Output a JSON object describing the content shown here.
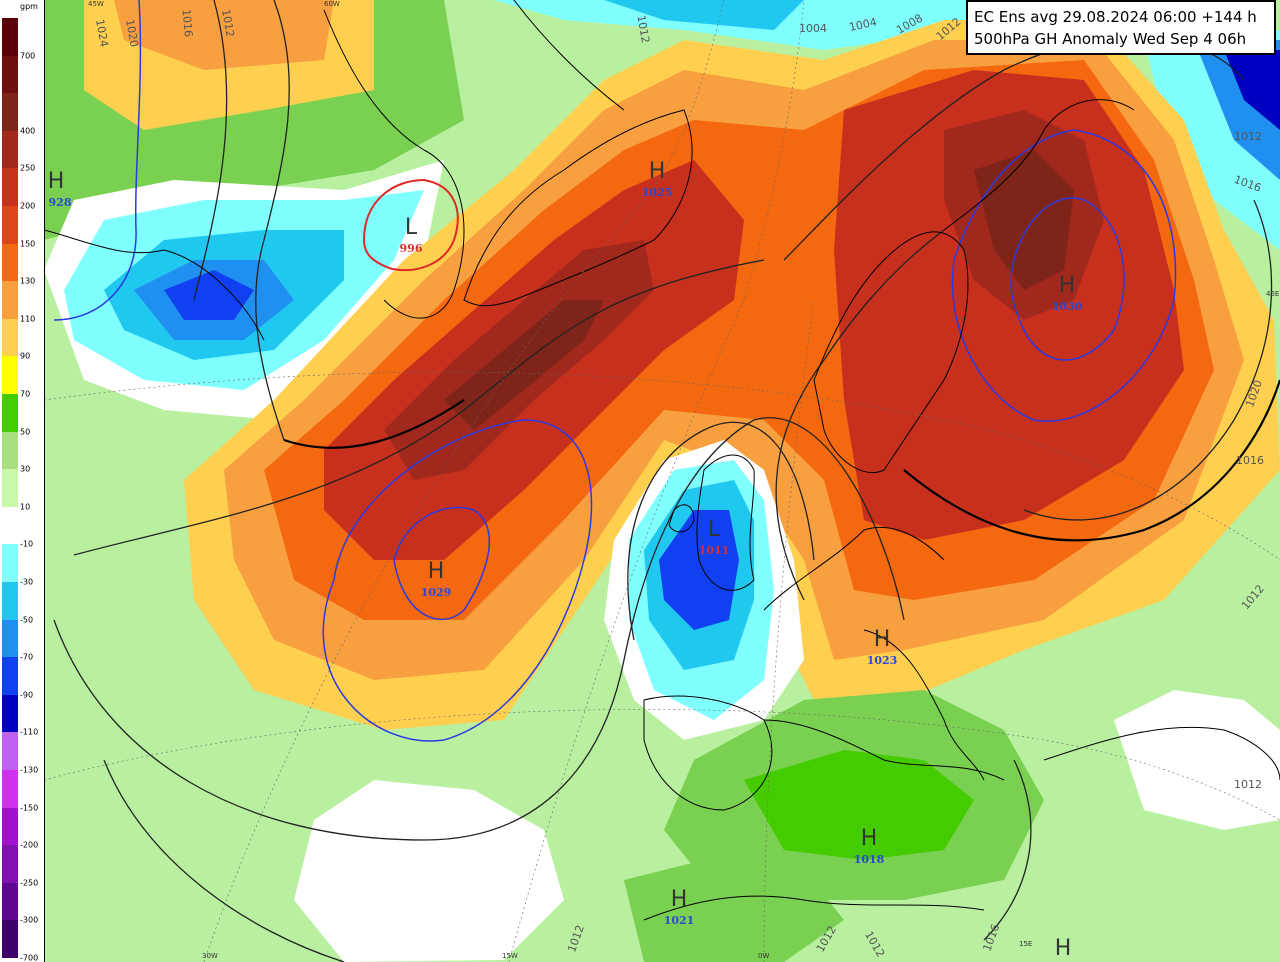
{
  "title": {
    "line1": "EC Ens avg 29.08.2024 06:00 +144 h",
    "line2": "500hPa GH Anomaly Wed Sep 4 06h"
  },
  "legend": {
    "unit": "gpm",
    "bands": [
      {
        "label": "700",
        "color": "#5a0008"
      },
      {
        "label": "",
        "color": "#6e0f12"
      },
      {
        "label": "400",
        "color": "#7e2418"
      },
      {
        "label": "250",
        "color": "#a0281c"
      },
      {
        "label": "200",
        "color": "#c8301e"
      },
      {
        "label": "150",
        "color": "#e0441a"
      },
      {
        "label": "130",
        "color": "#f46810"
      },
      {
        "label": "110",
        "color": "#f8a040"
      },
      {
        "label": "90",
        "color": "#ffd050"
      },
      {
        "label": "70",
        "color": "#ffff00"
      },
      {
        "label": "50",
        "color": "#44cc00"
      },
      {
        "label": "30",
        "color": "#a8e080"
      },
      {
        "label": "10",
        "color": "#c8f8a8"
      },
      {
        "label": "-10",
        "color": "#ffffff"
      },
      {
        "label": "-30",
        "color": "#80ffff"
      },
      {
        "label": "-50",
        "color": "#20c8f0"
      },
      {
        "label": "-70",
        "color": "#2090f0"
      },
      {
        "label": "-90",
        "color": "#1040f0"
      },
      {
        "label": "-110",
        "color": "#0000c0"
      },
      {
        "label": "-130",
        "color": "#c060f0"
      },
      {
        "label": "-150",
        "color": "#d030f0"
      },
      {
        "label": "-200",
        "color": "#a010d0"
      },
      {
        "label": "-250",
        "color": "#8010b0"
      },
      {
        "label": "-300",
        "color": "#600890"
      },
      {
        "label": "-700",
        "color": "#40006a"
      }
    ]
  },
  "pressure_systems": [
    {
      "type": "H",
      "value": "928",
      "value_color": "#2a48d0"
    },
    {
      "type": "L",
      "value": "996",
      "value_color": "#d83030"
    },
    {
      "type": "H",
      "value": "1025",
      "value_color": "#2a48d0"
    },
    {
      "type": "H",
      "value": "1030",
      "value_color": "#2a48d0"
    },
    {
      "type": "H",
      "value": "1029",
      "value_color": "#2a48d0"
    },
    {
      "type": "L",
      "value": "1011",
      "value_color": "#d83030"
    },
    {
      "type": "H",
      "value": "1023",
      "value_color": "#2a48d0"
    },
    {
      "type": "H",
      "value": "1018",
      "value_color": "#2a48d0"
    },
    {
      "type": "H",
      "value": "1021",
      "value_color": "#2a48d0"
    },
    {
      "type": "H",
      "value": "",
      "value_color": "#2a48d0"
    }
  ],
  "isobar_labels": [
    "1024",
    "1020",
    "1016",
    "1012",
    "1004",
    "1004",
    "1008",
    "1012",
    "1012",
    "1016",
    "1020",
    "1016",
    "1012",
    "1012",
    "1012",
    "1012",
    "1016",
    "1012",
    "1012"
  ],
  "lon_labels": [
    "45W",
    "60W",
    "30W",
    "15W",
    "0W",
    "15E",
    "45E"
  ]
}
